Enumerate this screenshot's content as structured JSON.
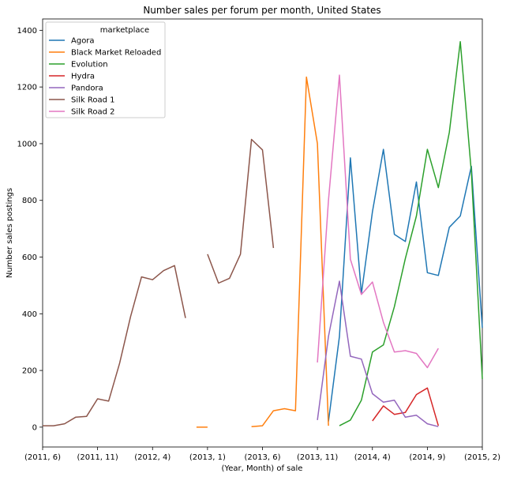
{
  "chart_data": {
    "type": "line",
    "title": "Number sales per forum per month, United States",
    "xlabel": "(Year, Month) of sale",
    "ylabel": "Number sales postings",
    "x_ticks": [
      {
        "index": 0,
        "label": "(2011, 6)"
      },
      {
        "index": 5,
        "label": "(2011, 11)"
      },
      {
        "index": 10,
        "label": "(2012, 4)"
      },
      {
        "index": 15,
        "label": "(2013, 1)"
      },
      {
        "index": 20,
        "label": "(2013, 6)"
      },
      {
        "index": 25,
        "label": "(2013, 11)"
      },
      {
        "index": 30,
        "label": "(2014, 4)"
      },
      {
        "index": 35,
        "label": "(2014, 9)"
      },
      {
        "index": 40,
        "label": "(2015, 2)"
      }
    ],
    "x_range": [
      0,
      40
    ],
    "ylim": [
      -70,
      1440
    ],
    "y_ticks": [
      0,
      200,
      400,
      600,
      800,
      1000,
      1200,
      1400
    ],
    "legend": {
      "title": "marketplace",
      "position": "top-left"
    },
    "series": [
      {
        "name": "Agora",
        "color": "#1f77b4",
        "points": [
          [
            26,
            20
          ],
          [
            27,
            320
          ],
          [
            28,
            950
          ],
          [
            29,
            470
          ],
          [
            30,
            760
          ],
          [
            31,
            980
          ],
          [
            32,
            680
          ],
          [
            33,
            655
          ],
          [
            34,
            865
          ],
          [
            35,
            545
          ],
          [
            36,
            535
          ],
          [
            37,
            705
          ],
          [
            38,
            745
          ],
          [
            39,
            920
          ],
          [
            40,
            350
          ]
        ]
      },
      {
        "name": "Black Market Reloaded",
        "color": "#ff7f0e",
        "points": [
          [
            14,
            0
          ],
          [
            15,
            0
          ],
          null,
          [
            19,
            2
          ],
          [
            20,
            5
          ],
          [
            21,
            58
          ],
          [
            22,
            65
          ],
          [
            23,
            58
          ],
          [
            24,
            1235
          ],
          [
            25,
            1000
          ],
          [
            26,
            5
          ]
        ]
      },
      {
        "name": "Evolution",
        "color": "#2ca02c",
        "points": [
          [
            27,
            5
          ],
          [
            28,
            25
          ],
          [
            29,
            95
          ],
          [
            30,
            265
          ],
          [
            31,
            290
          ],
          [
            32,
            425
          ],
          [
            33,
            595
          ],
          [
            34,
            745
          ],
          [
            35,
            980
          ],
          [
            36,
            845
          ],
          [
            37,
            1040
          ],
          [
            38,
            1360
          ],
          [
            39,
            900
          ],
          [
            40,
            170
          ]
        ]
      },
      {
        "name": "Hydra",
        "color": "#d62728",
        "points": [
          [
            30,
            22
          ],
          [
            31,
            75
          ],
          [
            32,
            45
          ],
          [
            33,
            52
          ],
          [
            34,
            115
          ],
          [
            35,
            138
          ],
          [
            36,
            5
          ]
        ]
      },
      {
        "name": "Pandora",
        "color": "#9467bd",
        "points": [
          [
            25,
            25
          ],
          [
            26,
            320
          ],
          [
            27,
            515
          ],
          [
            28,
            250
          ],
          [
            29,
            240
          ],
          [
            30,
            118
          ],
          [
            31,
            88
          ],
          [
            32,
            95
          ],
          [
            33,
            35
          ],
          [
            34,
            42
          ],
          [
            35,
            12
          ],
          [
            36,
            2
          ]
        ]
      },
      {
        "name": "Silk Road 1",
        "color": "#8c564b",
        "points": [
          [
            0,
            5
          ],
          [
            1,
            5
          ],
          [
            2,
            12
          ],
          [
            3,
            35
          ],
          [
            4,
            38
          ],
          [
            5,
            100
          ],
          [
            6,
            92
          ],
          [
            7,
            225
          ],
          [
            8,
            390
          ],
          [
            9,
            530
          ],
          [
            10,
            520
          ],
          [
            11,
            552
          ],
          [
            12,
            570
          ],
          [
            13,
            385
          ],
          null,
          [
            15,
            610
          ],
          [
            16,
            508
          ],
          [
            17,
            525
          ],
          [
            18,
            610
          ],
          [
            19,
            1015
          ],
          [
            20,
            978
          ],
          [
            21,
            632
          ]
        ]
      },
      {
        "name": "Silk Road 2",
        "color": "#e377c2",
        "points": [
          [
            25,
            228
          ],
          [
            26,
            800
          ],
          [
            27,
            1242
          ],
          [
            28,
            592
          ],
          [
            29,
            468
          ],
          [
            30,
            512
          ],
          [
            31,
            370
          ],
          [
            32,
            265
          ],
          [
            33,
            270
          ],
          [
            34,
            260
          ],
          [
            35,
            210
          ],
          [
            36,
            278
          ]
        ]
      }
    ]
  }
}
